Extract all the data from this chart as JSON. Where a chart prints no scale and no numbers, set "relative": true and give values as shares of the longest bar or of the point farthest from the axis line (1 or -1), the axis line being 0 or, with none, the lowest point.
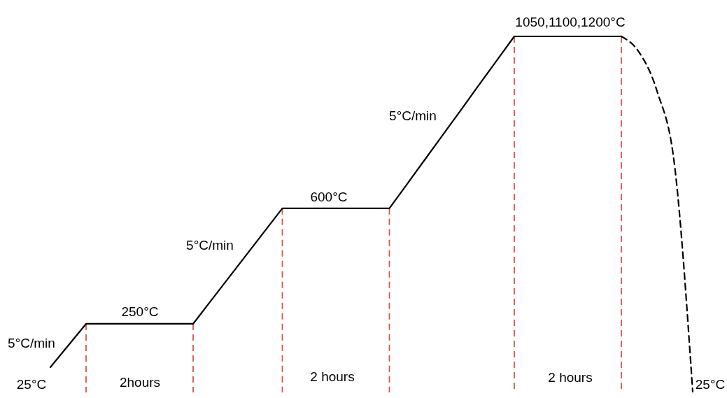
{
  "chart_data": {
    "type": "line",
    "relative": true,
    "categories": [
      null,
      null,
      null,
      null,
      null,
      null,
      null,
      null,
      null,
      null,
      null,
      null,
      null,
      null,
      null,
      null,
      null,
      null,
      null,
      null,
      null,
      null,
      null,
      null,
      null,
      null,
      null,
      null,
      null,
      null,
      null,
      null,
      null,
      null,
      null,
      null,
      null
    ],
    "series": [
      {
        "color": "#000000",
        "line_style": "solid",
        "values": [
          0.069,
          0.13,
          0.191,
          0.191,
          0.191,
          0.191,
          0.191,
          0.191,
          0.191,
          0.256,
          0.321,
          0.386,
          0.451,
          0.516,
          0.516,
          0.516,
          0.516,
          0.516,
          0.516,
          0.516,
          0.585,
          0.654,
          0.723,
          0.792,
          0.862,
          0.931,
          1,
          1,
          1,
          1,
          1,
          1,
          1,
          null,
          null,
          null,
          null
        ]
      },
      {
        "color": "#000000",
        "line_style": "dashed",
        "values": [
          null,
          null,
          null,
          null,
          null,
          null,
          null,
          null,
          null,
          null,
          null,
          null,
          null,
          null,
          null,
          null,
          null,
          null,
          null,
          null,
          null,
          null,
          null,
          null,
          null,
          null,
          null,
          null,
          null,
          null,
          null,
          null,
          1,
          0.955,
          0.846,
          0.63,
          0
        ]
      }
    ],
    "annotations": [
      "5°C/min",
      "25°C",
      "250°C",
      "2hours",
      "5°C/min",
      "600°C",
      "2 hours",
      "5°C/min",
      "1050,1100,1200°C",
      "2 hours",
      "25°C"
    ]
  }
}
